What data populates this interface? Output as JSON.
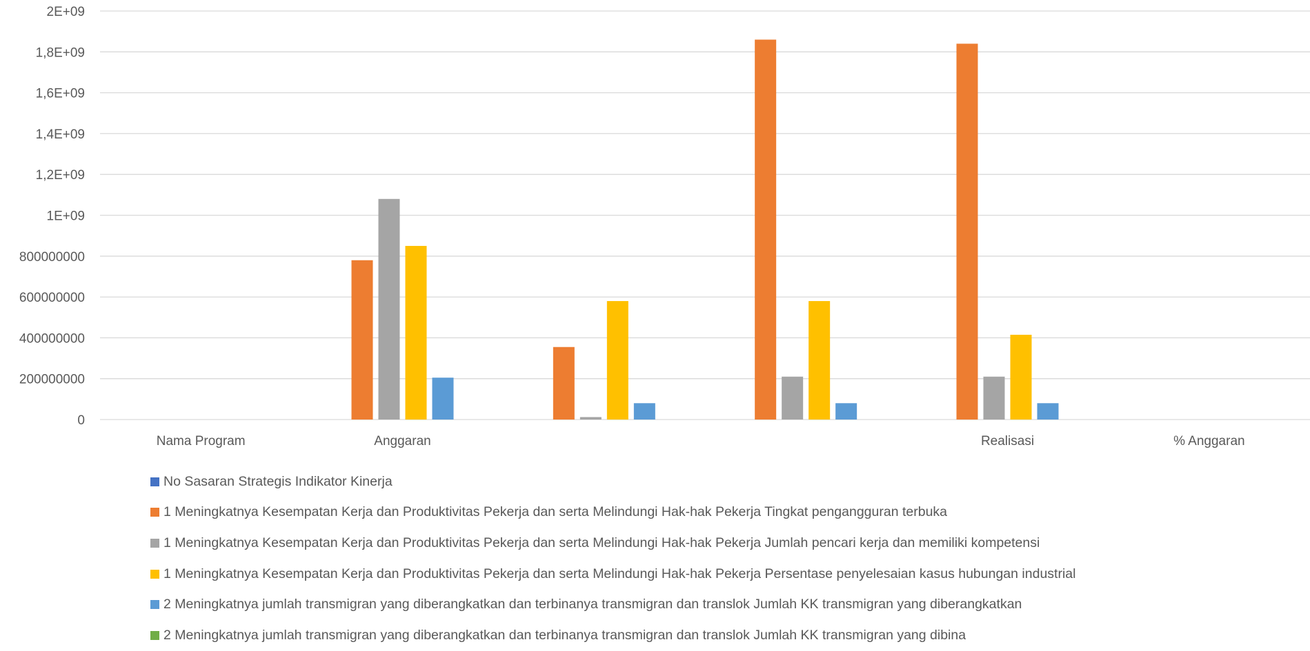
{
  "chart_data": {
    "type": "bar",
    "title": "",
    "xlabel": "",
    "ylabel": "",
    "ylim": [
      0,
      2000000000
    ],
    "yticks": [
      0,
      200000000,
      400000000,
      600000000,
      800000000,
      1000000000,
      1200000000,
      1400000000,
      1600000000,
      1800000000,
      2000000000
    ],
    "ytick_labels": [
      "0",
      "200000000",
      "400000000",
      "600000000",
      "800000000",
      "1E+09",
      "1,2E+09",
      "1,4E+09",
      "1,6E+09",
      "1,8E+09",
      "2E+09"
    ],
    "grid": true,
    "legend_position": "bottom",
    "categories": [
      "Nama Program",
      "Anggaran",
      "",
      "",
      "Realisasi",
      "% Anggaran"
    ],
    "series": [
      {
        "name": "No Sasaran Strategis Indikator Kinerja",
        "color": "#4472C4",
        "values": [
          0,
          0,
          0,
          0,
          0,
          0
        ]
      },
      {
        "name": "1 Meningkatnya Kesempatan Kerja dan Produktivitas Pekerja dan serta Melindungi Hak-hak Pekerja Tingkat pengangguran terbuka",
        "color": "#ED7D31",
        "values": [
          0,
          780000000,
          355000000,
          1860000000,
          1840000000,
          0
        ]
      },
      {
        "name": "1 Meningkatnya Kesempatan Kerja dan Produktivitas Pekerja dan serta Melindungi Hak-hak Pekerja Jumlah pencari kerja dan memiliki kompetensi",
        "color": "#A5A5A5",
        "values": [
          0,
          1080000000,
          12000000,
          210000000,
          210000000,
          0
        ]
      },
      {
        "name": "1 Meningkatnya Kesempatan Kerja dan Produktivitas Pekerja dan serta Melindungi Hak-hak Pekerja Persentase penyelesaian kasus hubungan industrial",
        "color": "#FFC000",
        "values": [
          0,
          850000000,
          580000000,
          580000000,
          415000000,
          0
        ]
      },
      {
        "name": "2 Meningkatnya jumlah transmigran yang diberangkatkan dan terbinanya transmigran dan translok Jumlah KK transmigran yang diberangkatkan",
        "color": "#5B9BD5",
        "values": [
          0,
          205000000,
          80000000,
          80000000,
          80000000,
          0
        ]
      },
      {
        "name": "2 Meningkatnya jumlah transmigran yang diberangkatkan dan terbinanya transmigran dan translok Jumlah KK transmigran yang dibina",
        "color": "#70AD47",
        "values": [
          0,
          0,
          0,
          0,
          0,
          0
        ]
      }
    ]
  }
}
